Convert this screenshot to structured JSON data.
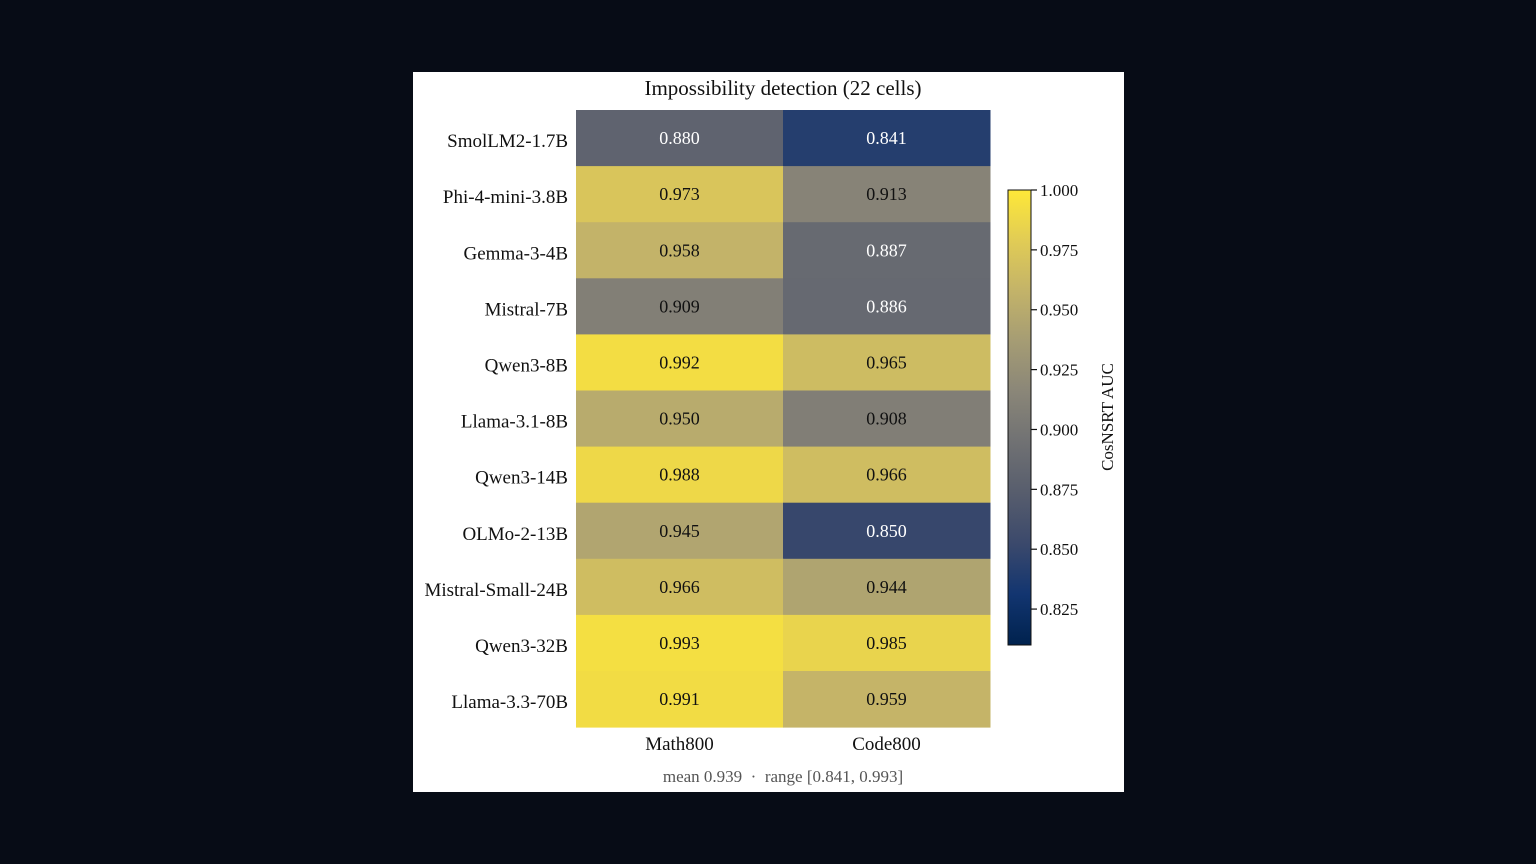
{
  "page": {
    "background": "#070c16",
    "figure_background": "#ffffff"
  },
  "chart_data": {
    "type": "heatmap",
    "title": "Impossibility detection (22 cells)",
    "columns": [
      "Math800",
      "Code800"
    ],
    "rows": [
      "SmolLM2-1.7B",
      "Phi-4-mini-3.8B",
      "Gemma-3-4B",
      "Mistral-7B",
      "Qwen3-8B",
      "Llama-3.1-8B",
      "Qwen3-14B",
      "OLMo-2-13B",
      "Mistral-Small-24B",
      "Qwen3-32B",
      "Llama-3.3-70B"
    ],
    "values": [
      [
        0.88,
        0.841
      ],
      [
        0.973,
        0.913
      ],
      [
        0.958,
        0.887
      ],
      [
        0.909,
        0.886
      ],
      [
        0.992,
        0.965
      ],
      [
        0.95,
        0.908
      ],
      [
        0.988,
        0.966
      ],
      [
        0.945,
        0.85
      ],
      [
        0.966,
        0.944
      ],
      [
        0.993,
        0.985
      ],
      [
        0.991,
        0.959
      ]
    ],
    "cell_labels": [
      [
        "0.880",
        "0.841"
      ],
      [
        "0.973",
        "0.913"
      ],
      [
        "0.958",
        "0.887"
      ],
      [
        "0.909",
        "0.886"
      ],
      [
        "0.992",
        "0.965"
      ],
      [
        "0.950",
        "0.908"
      ],
      [
        "0.988",
        "0.966"
      ],
      [
        "0.945",
        "0.850"
      ],
      [
        "0.966",
        "0.944"
      ],
      [
        "0.993",
        "0.985"
      ],
      [
        "0.991",
        "0.959"
      ]
    ],
    "colormap": "cividis",
    "colormap_stops": [
      "#00224e",
      "#123570",
      "#3b496c",
      "#575d6d",
      "#707173",
      "#8a8678",
      "#a59c74",
      "#c3b369",
      "#e1cc55",
      "#fee838"
    ],
    "vmin": 0.81,
    "vmax": 1.0,
    "colorbar": {
      "label": "CosNSRT AUC",
      "ticks": [
        0.825,
        0.85,
        0.875,
        0.9,
        0.925,
        0.95,
        0.975,
        1.0
      ],
      "tick_labels": [
        "0.825",
        "0.850",
        "0.875",
        "0.900",
        "0.925",
        "0.950",
        "0.975",
        "1.000"
      ]
    },
    "footer": "mean 0.939  ·  range [0.841, 0.993]"
  }
}
